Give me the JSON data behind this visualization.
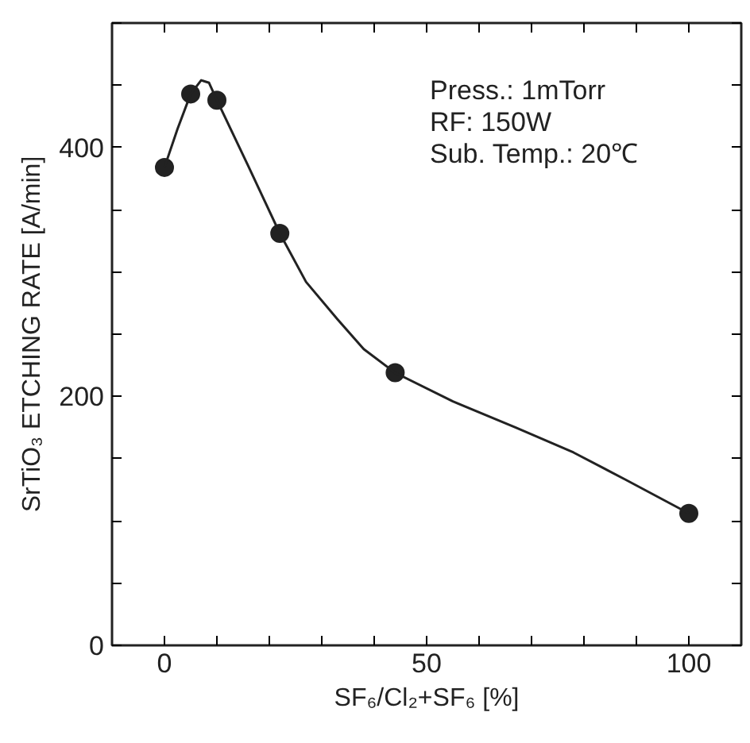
{
  "chart_data": {
    "type": "scatter",
    "xlabel": "SF₆/Cl₂+SF₆ [%]",
    "ylabel": "SrTiO₃ ETCHING RATE [A/min]",
    "annotations": [
      "Press.: 1mTorr",
      "RF: 150W",
      "Sub. Temp.: 20℃"
    ],
    "xlim": [
      -10,
      110
    ],
    "ylim": [
      0,
      500
    ],
    "xticks": [
      0,
      {
        "value": 10,
        "label": null
      },
      {
        "value": 20,
        "label": null
      },
      {
        "value": 30,
        "label": null
      },
      {
        "value": 40,
        "label": null
      },
      50,
      {
        "value": 60,
        "label": null
      },
      {
        "value": 70,
        "label": null
      },
      {
        "value": 80,
        "label": null
      },
      {
        "value": 90,
        "label": null
      },
      100
    ],
    "yticks": [
      0,
      {
        "value": 50,
        "label": null
      },
      {
        "value": 100,
        "label": null
      },
      {
        "value": 150,
        "label": null
      },
      200,
      {
        "value": 250,
        "label": null
      },
      {
        "value": 300,
        "label": null
      },
      {
        "value": 350,
        "label": null
      },
      400,
      {
        "value": 450,
        "label": null
      },
      {
        "value": 500,
        "label": null
      }
    ],
    "grid": false,
    "marker": "circle",
    "series": [
      {
        "color": "#222222",
        "x": [
          0,
          5,
          10,
          22,
          44,
          100
        ],
        "values": [
          384,
          443,
          438,
          331,
          219,
          106
        ]
      },
      {
        "type": "line",
        "color": "#222222",
        "line_style": "solid",
        "marker": "none",
        "x": [
          0,
          2.5,
          5,
          7,
          8.5,
          10,
          16,
          22,
          27,
          33,
          38,
          44,
          55,
          67,
          78,
          88,
          100
        ],
        "values": [
          384,
          415,
          443,
          454,
          452,
          438,
          385,
          331,
          292,
          262,
          238,
          219,
          196,
          175,
          155,
          133,
          106
        ]
      }
    ]
  }
}
